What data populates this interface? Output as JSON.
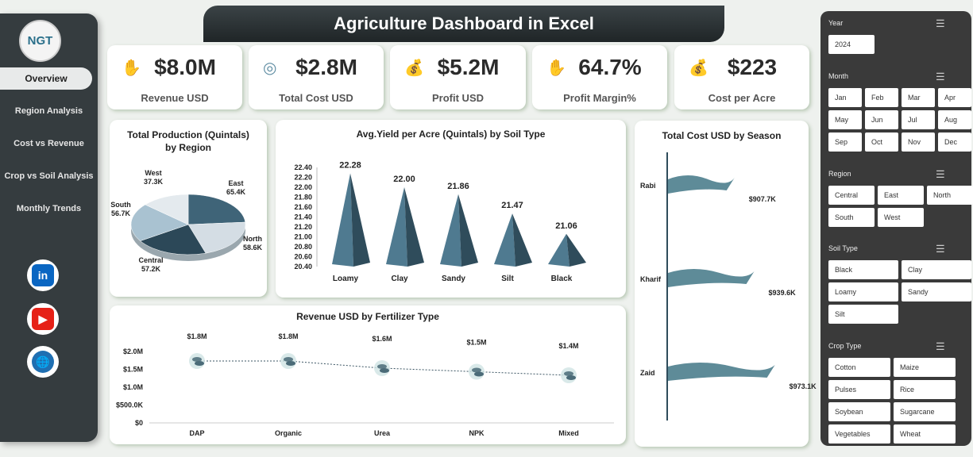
{
  "sidebar": {
    "logo": "NGT",
    "items": [
      {
        "label": "Overview"
      },
      {
        "label": "Region Analysis"
      },
      {
        "label": "Cost vs Revenue"
      },
      {
        "label": "Crop vs Soil Analysis"
      },
      {
        "label": "Monthly Trends"
      }
    ],
    "social": [
      {
        "icon": "linkedin-icon",
        "label": "in",
        "color": "#0a66c2"
      },
      {
        "icon": "youtube-icon",
        "label": "▶",
        "color": "#e62117"
      },
      {
        "icon": "globe-icon",
        "label": "🌐",
        "color": "#1f6fb2"
      }
    ]
  },
  "title": "Agriculture Dashboard in Excel",
  "kpis": [
    {
      "value": "$8.0M",
      "label": "Revenue USD",
      "icon": "money-hand-icon"
    },
    {
      "value": "$2.8M",
      "label": "Total Cost USD",
      "icon": "coins-icon"
    },
    {
      "value": "$5.2M",
      "label": "Profit USD",
      "icon": "money-bag-icon"
    },
    {
      "value": "64.7%",
      "label": "Profit Margin%",
      "icon": "money-hand-icon"
    },
    {
      "value": "$223",
      "label": "Cost per Acre",
      "icon": "money-bag-icon"
    }
  ],
  "chart_data": [
    {
      "type": "pie",
      "title": "Total Production (Quintals) by Region",
      "labels": [
        "East",
        "North",
        "Central",
        "South",
        "West"
      ],
      "values": [
        65.4,
        58.6,
        57.2,
        56.7,
        37.3
      ],
      "value_labels": [
        "65.4K",
        "58.6K",
        "57.2K",
        "56.7K",
        "37.3K"
      ],
      "colors": [
        "#3f6478",
        "#d4dde4",
        "#2c4858",
        "#a9c2d1",
        "#e4eaee"
      ]
    },
    {
      "type": "bar",
      "title": "Avg.Yield per Acre (Quintals) by Soil Type",
      "categories": [
        "Loamy",
        "Clay",
        "Sandy",
        "Silt",
        "Black"
      ],
      "values": [
        22.28,
        22.0,
        21.86,
        21.47,
        21.06
      ],
      "value_labels": [
        "22.28",
        "22.00",
        "21.86",
        "21.47",
        "21.06"
      ],
      "ylim": [
        20.4,
        22.4
      ],
      "yticks": [
        "20.40",
        "20.60",
        "20.80",
        "21.00",
        "21.20",
        "21.40",
        "21.60",
        "21.80",
        "22.00",
        "22.20",
        "22.40"
      ]
    },
    {
      "type": "bar",
      "title": "Total Cost USD by Season",
      "categories": [
        "Rabi",
        "Kharif",
        "Zaid"
      ],
      "values": [
        907.7,
        939.6,
        973.1
      ],
      "value_labels": [
        "$907.7K",
        "$939.6K",
        "$973.1K"
      ]
    },
    {
      "type": "line",
      "title": "Revenue USD by Fertilizer Type",
      "categories": [
        "DAP",
        "Organic",
        "Urea",
        "NPK",
        "Mixed"
      ],
      "values": [
        1.8,
        1.8,
        1.6,
        1.5,
        1.4
      ],
      "value_labels": [
        "$1.8M",
        "$1.8M",
        "$1.6M",
        "$1.5M",
        "$1.4M"
      ],
      "ylim": [
        0,
        2.0
      ],
      "yticks": [
        "$0",
        "$500.0K",
        "$1.0M",
        "$1.5M",
        "$2.0M"
      ]
    }
  ],
  "slicers": [
    {
      "title": "Year",
      "items": [
        "2024"
      ]
    },
    {
      "title": "Month",
      "items": [
        "Jan",
        "Feb",
        "Mar",
        "Apr",
        "May",
        "Jun",
        "Jul",
        "Aug",
        "Sep",
        "Oct",
        "Nov",
        "Dec"
      ]
    },
    {
      "title": "Region",
      "items": [
        "Central",
        "East",
        "North",
        "South",
        "West"
      ]
    },
    {
      "title": "Soil Type",
      "items": [
        "Black",
        "Clay",
        "Loamy",
        "Sandy",
        "Silt"
      ]
    },
    {
      "title": "Crop Type",
      "items": [
        "Cotton",
        "Maize",
        "Pulses",
        "Rice",
        "Soybean",
        "Sugarcane",
        "Vegetables",
        "Wheat"
      ]
    }
  ]
}
